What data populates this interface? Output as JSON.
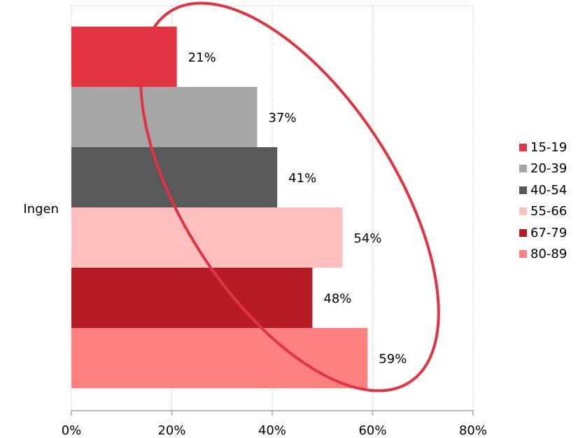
{
  "chart_data": {
    "type": "bar",
    "orientation": "horizontal",
    "categories": [
      "Ingen"
    ],
    "series": [
      {
        "name": "15-19",
        "values": [
          21
        ],
        "color": "#e23340"
      },
      {
        "name": "20-39",
        "values": [
          37
        ],
        "color": "#a6a6a6"
      },
      {
        "name": "40-54",
        "values": [
          41
        ],
        "color": "#595959"
      },
      {
        "name": "55-66",
        "values": [
          54
        ],
        "color": "#ffbfbf"
      },
      {
        "name": "67-79",
        "values": [
          48
        ],
        "color": "#b71c24"
      },
      {
        "name": "80-89",
        "values": [
          59
        ],
        "color": "#ff8080"
      }
    ],
    "data_labels": [
      "21%",
      "37%",
      "41%",
      "54%",
      "48%",
      "59%"
    ],
    "x_ticks": [
      "0%",
      "20%",
      "40%",
      "60%",
      "80%"
    ],
    "xlim": [
      0,
      80
    ],
    "grid": true,
    "legend_position": "right",
    "annotation": {
      "shape": "ellipse",
      "color": "#e23340"
    }
  }
}
